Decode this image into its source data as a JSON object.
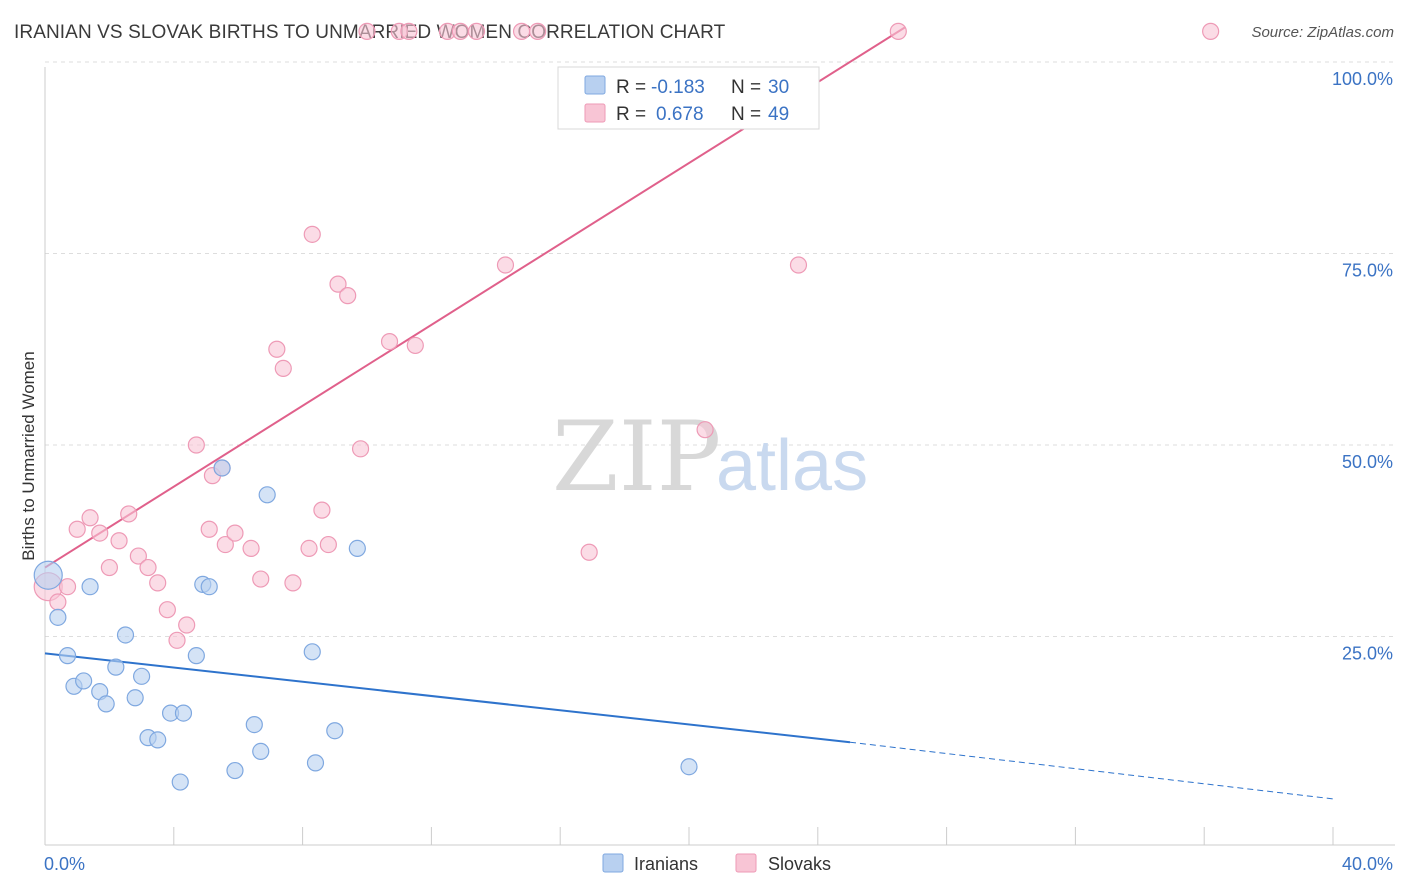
{
  "title": "IRANIAN VS SLOVAK BIRTHS TO UNMARRIED WOMEN CORRELATION CHART",
  "source": "Source: ZipAtlas.com",
  "watermark": {
    "zip": "ZIP",
    "atlas": "atlas"
  },
  "colors": {
    "iranians_fill": "#b8d0f0",
    "iranians_stroke": "#7fa8e0",
    "iranians_line": "#2e73cc",
    "slovaks_fill": "#f8c5d5",
    "slovaks_stroke": "#ee9ab6",
    "slovaks_line": "#e0608b",
    "grid": "#dddddd",
    "axis_text": "#3b73c4"
  },
  "legend": {
    "rows": [
      {
        "r_label": "R =",
        "r_value": "-0.183",
        "n_label": "N =",
        "n_value": "30"
      },
      {
        "r_label": "R =",
        "r_value": "0.678",
        "n_label": "N =",
        "n_value": "49"
      }
    ]
  },
  "chart_data": {
    "type": "scatter",
    "title": "IRANIAN VS SLOVAK BIRTHS TO UNMARRIED WOMEN CORRELATION CHART",
    "xlabel": "",
    "ylabel": "Births to Unmarried Women",
    "xlim": [
      0,
      40
    ],
    "ylim": [
      0,
      100
    ],
    "x_tick_labels": [
      "0.0%",
      "40.0%"
    ],
    "y_ticks": [
      25,
      50,
      75,
      100
    ],
    "y_tick_labels": [
      "25.0%",
      "50.0%",
      "75.0%",
      "100.0%"
    ],
    "grid": true,
    "legend_position": "top-center",
    "series": [
      {
        "name": "Iranians",
        "r": -0.183,
        "n": 30,
        "points": [
          [
            0.1,
            33.0,
            "big"
          ],
          [
            0.4,
            27.5
          ],
          [
            0.7,
            22.5
          ],
          [
            0.9,
            18.5
          ],
          [
            1.2,
            19.2
          ],
          [
            1.4,
            31.5
          ],
          [
            1.7,
            17.8
          ],
          [
            1.9,
            16.2
          ],
          [
            2.2,
            21.0
          ],
          [
            2.5,
            25.2
          ],
          [
            2.8,
            17.0
          ],
          [
            3.0,
            19.8
          ],
          [
            3.2,
            11.8
          ],
          [
            3.5,
            11.5
          ],
          [
            3.9,
            15.0
          ],
          [
            4.2,
            6.0
          ],
          [
            4.3,
            15.0
          ],
          [
            4.7,
            22.5
          ],
          [
            4.9,
            31.8
          ],
          [
            5.1,
            31.5
          ],
          [
            5.5,
            47.0
          ],
          [
            5.9,
            7.5
          ],
          [
            6.5,
            13.5
          ],
          [
            6.7,
            10.0
          ],
          [
            6.9,
            43.5
          ],
          [
            8.3,
            23.0
          ],
          [
            8.4,
            8.5
          ],
          [
            9.0,
            12.7
          ],
          [
            9.7,
            36.5
          ],
          [
            20.0,
            8.0
          ]
        ],
        "trend": {
          "x0": 0,
          "y0": 22.8,
          "x1": 25,
          "y1": 11.2,
          "x_dash_end": 40,
          "y_dash_end": 3.8
        }
      },
      {
        "name": "Slovaks",
        "r": 0.678,
        "n": 49,
        "points": [
          [
            0.1,
            31.5,
            "big"
          ],
          [
            0.4,
            29.5
          ],
          [
            0.7,
            31.5
          ],
          [
            1.0,
            39.0
          ],
          [
            1.4,
            40.5
          ],
          [
            1.7,
            38.5
          ],
          [
            2.0,
            34.0
          ],
          [
            2.3,
            37.5
          ],
          [
            2.6,
            41.0
          ],
          [
            2.9,
            35.5
          ],
          [
            3.2,
            34.0
          ],
          [
            3.5,
            32.0
          ],
          [
            3.8,
            28.5
          ],
          [
            4.1,
            24.5
          ],
          [
            4.4,
            26.5
          ],
          [
            4.7,
            50.0
          ],
          [
            5.1,
            39.0
          ],
          [
            5.2,
            46.0
          ],
          [
            5.5,
            47.0
          ],
          [
            5.6,
            37.0
          ],
          [
            5.9,
            38.5
          ],
          [
            6.4,
            36.5
          ],
          [
            6.7,
            32.5
          ],
          [
            7.2,
            62.5
          ],
          [
            7.4,
            60.0
          ],
          [
            7.7,
            32.0
          ],
          [
            8.2,
            36.5
          ],
          [
            8.3,
            77.5
          ],
          [
            8.6,
            41.5
          ],
          [
            8.8,
            37.0
          ],
          [
            9.1,
            71.0
          ],
          [
            9.4,
            69.5
          ],
          [
            9.8,
            49.5
          ],
          [
            10.0,
            104.0
          ],
          [
            10.7,
            63.5
          ],
          [
            11.0,
            104.0
          ],
          [
            11.3,
            104.0
          ],
          [
            11.5,
            63.0
          ],
          [
            12.5,
            104.0
          ],
          [
            12.9,
            104.0
          ],
          [
            13.4,
            104.0
          ],
          [
            14.3,
            73.5
          ],
          [
            14.8,
            104.0
          ],
          [
            15.3,
            104.0
          ],
          [
            16.9,
            36.0
          ],
          [
            20.5,
            52.0
          ],
          [
            23.4,
            73.5
          ],
          [
            26.5,
            104.0
          ],
          [
            36.2,
            104.0
          ]
        ],
        "trend": {
          "x0": 0,
          "y0": 34.0,
          "x1": 26.7,
          "y1": 104.5
        }
      }
    ]
  },
  "bottom_legend": {
    "iranians": "Iranians",
    "slovaks": "Slovaks"
  }
}
